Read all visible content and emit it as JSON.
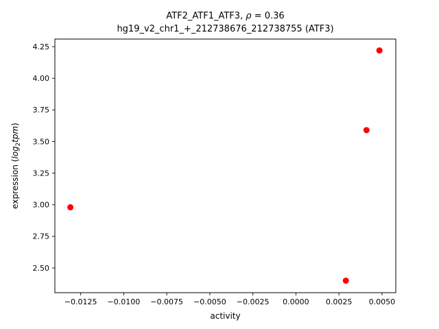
{
  "figure": {
    "background": "#ffffff",
    "title": {
      "line1_prefix": "ATF2_ATF1_ATF3, ",
      "line1_rho": "ρ",
      "line1_suffix": " = 0.36",
      "line2": "hg19_v2_chr1_+_212738676_212738755 (ATF3)"
    },
    "axis_color": "#000000"
  },
  "chart_data": {
    "type": "scatter",
    "title": "ATF2_ATF1_ATF3, ρ = 0.36",
    "subtitle": "hg19_v2_chr1_+_212738676_212738755 (ATF3)",
    "xlabel": "activity",
    "ylabel": "expression (log2 tpm)",
    "ylabel_parts": {
      "prefix": "expression (",
      "italic1": "log",
      "subscript": "2",
      "italic2": "tpm",
      "suffix": ")"
    },
    "marker_color": "#ff0000",
    "marker_size_px": 4.5,
    "grid": false,
    "legend": null,
    "xlim": [
      -0.014,
      0.0058
    ],
    "ylim": [
      2.305,
      4.31
    ],
    "points": [
      {
        "x": -0.0131,
        "y": 2.98
      },
      {
        "x": 0.0029,
        "y": 2.4
      },
      {
        "x": 0.0041,
        "y": 3.59
      },
      {
        "x": 0.00485,
        "y": 4.22
      }
    ],
    "x_ticks": [
      {
        "value": -0.0125,
        "label": "−0.0125"
      },
      {
        "value": -0.01,
        "label": "−0.0100"
      },
      {
        "value": -0.0075,
        "label": "−0.0075"
      },
      {
        "value": -0.005,
        "label": "−0.0050"
      },
      {
        "value": -0.0025,
        "label": "−0.0025"
      },
      {
        "value": 0.0,
        "label": "0.0000"
      },
      {
        "value": 0.0025,
        "label": "0.0025"
      },
      {
        "value": 0.005,
        "label": "0.0050"
      }
    ],
    "y_ticks": [
      {
        "value": 2.5,
        "label": "2.50"
      },
      {
        "value": 2.75,
        "label": "2.75"
      },
      {
        "value": 3.0,
        "label": "3.00"
      },
      {
        "value": 3.25,
        "label": "3.25"
      },
      {
        "value": 3.5,
        "label": "3.50"
      },
      {
        "value": 3.75,
        "label": "3.75"
      },
      {
        "value": 4.0,
        "label": "4.00"
      },
      {
        "value": 4.25,
        "label": "4.25"
      }
    ]
  }
}
